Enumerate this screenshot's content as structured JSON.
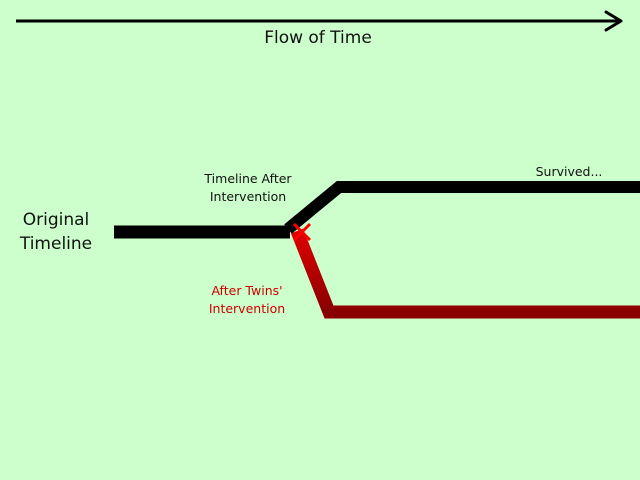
{
  "labels": {
    "flow_of_time": "Flow of Time",
    "original_timeline": "Original\nTimeline",
    "timeline_after": "Timeline After\nIntervention",
    "after_twins": "After Twins'\nIntervention",
    "survived": "Survived..."
  },
  "colors": {
    "background": "#ccffcc",
    "timeline": "#000000",
    "alternate_timeline": "#cc0000",
    "alternate_timeline_dark": "#880000",
    "cross_mark": "#ff0000"
  }
}
